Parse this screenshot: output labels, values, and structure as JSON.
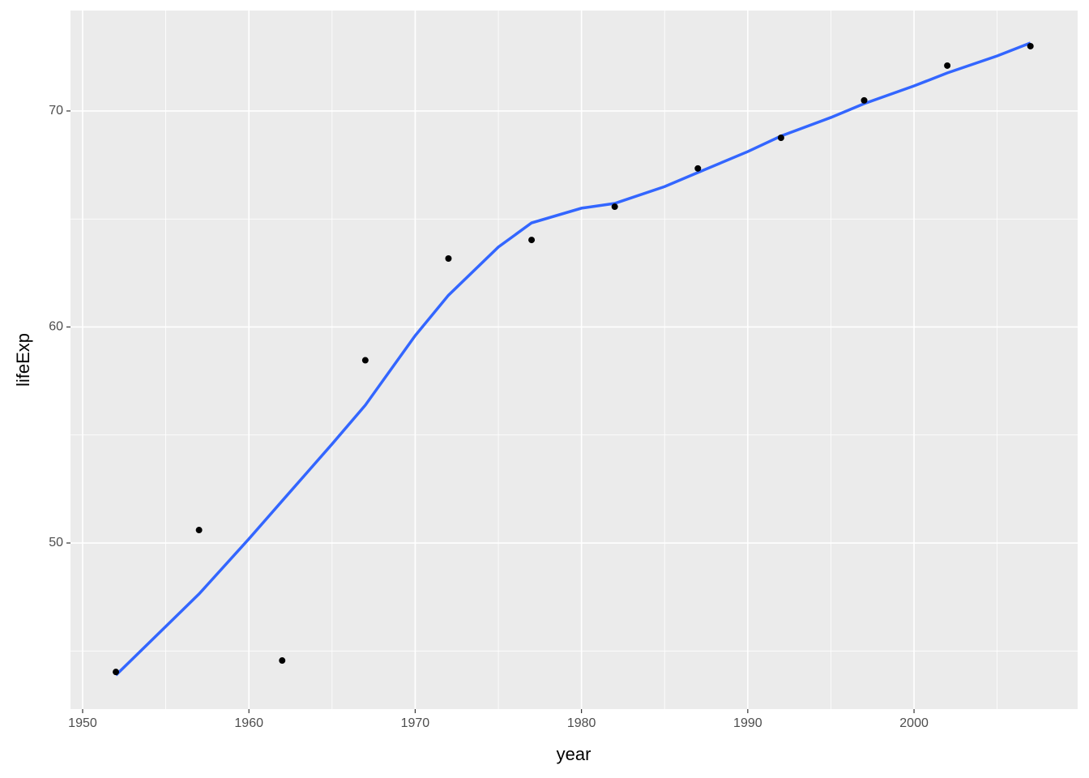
{
  "chart_data": {
    "type": "scatter",
    "x_label": "year",
    "y_label": "lifeExp",
    "x": [
      1952,
      1957,
      1962,
      1967,
      1972,
      1977,
      1982,
      1987,
      1992,
      1997,
      2002,
      2007
    ],
    "values": [
      44.03,
      50.6,
      44.56,
      58.46,
      63.17,
      64.03,
      65.57,
      67.34,
      68.76,
      70.49,
      72.1,
      73.0
    ],
    "color": "#000000",
    "smooth": {
      "color": "#3366ff",
      "x": [
        1952,
        1957,
        1960,
        1962,
        1965,
        1967,
        1970,
        1972,
        1975,
        1977,
        1980,
        1982,
        1985,
        1987,
        1990,
        1992,
        1995,
        1997,
        2000,
        2002,
        2005,
        2007
      ],
      "values": [
        43.88,
        47.64,
        50.19,
        51.95,
        54.58,
        56.38,
        59.6,
        61.47,
        63.7,
        64.82,
        65.5,
        65.72,
        66.5,
        67.15,
        68.12,
        68.84,
        69.7,
        70.34,
        71.16,
        71.76,
        72.55,
        73.15
      ]
    },
    "xlim": [
      1949.27,
      2009.84
    ],
    "ylim": [
      42.31,
      74.65
    ],
    "xticks": [
      1950,
      1960,
      1970,
      1980,
      1990,
      2000
    ],
    "yticks": [
      50,
      60,
      70
    ],
    "xminor": [
      1955,
      1965,
      1975,
      1985,
      1995,
      2005
    ],
    "yminor": [
      45,
      55,
      65
    ],
    "grid": true
  }
}
